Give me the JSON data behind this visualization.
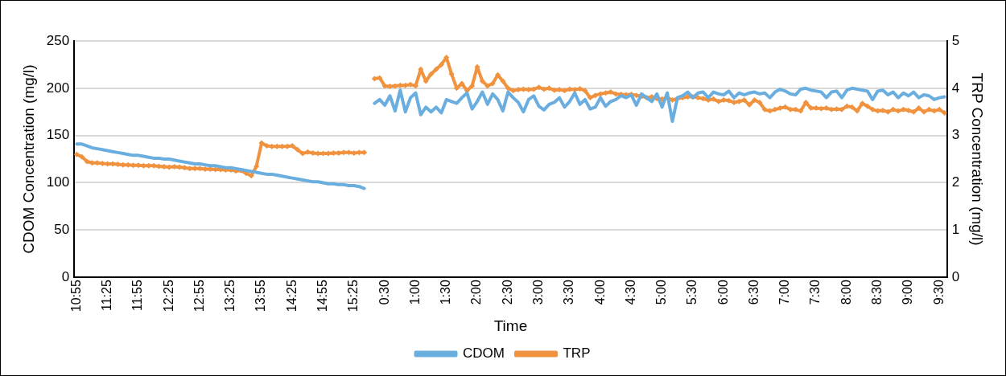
{
  "chart_data": {
    "type": "line",
    "xlabel": "Time",
    "ylabel": "CDOM Concentration (mg/l)",
    "y2label": "TRP Concentration (mg/l)",
    "categories": [
      "10:55",
      null,
      null,
      null,
      null,
      null,
      "11:25",
      null,
      null,
      null,
      null,
      null,
      "11:55",
      null,
      null,
      null,
      null,
      null,
      "12:25",
      null,
      null,
      null,
      null,
      null,
      "12:55",
      null,
      null,
      null,
      null,
      null,
      "13:25",
      null,
      null,
      null,
      null,
      null,
      "13:55",
      null,
      null,
      null,
      null,
      null,
      "14:25",
      null,
      null,
      null,
      null,
      null,
      "14:55",
      null,
      null,
      null,
      null,
      null,
      "15:25",
      null,
      null,
      null,
      null,
      null,
      "0:30",
      null,
      null,
      null,
      null,
      null,
      "1:00",
      null,
      null,
      null,
      null,
      null,
      "1:30",
      null,
      null,
      null,
      null,
      null,
      "2:00",
      null,
      null,
      null,
      null,
      null,
      "2:30",
      null,
      null,
      null,
      null,
      null,
      "3:00",
      null,
      null,
      null,
      null,
      null,
      "3:30",
      null,
      null,
      null,
      null,
      null,
      "4:00",
      null,
      null,
      null,
      null,
      null,
      "4:30",
      null,
      null,
      null,
      null,
      null,
      "5:00",
      null,
      null,
      null,
      null,
      null,
      "5:30",
      null,
      null,
      null,
      null,
      null,
      "6:00",
      null,
      null,
      null,
      null,
      null,
      "6:30",
      null,
      null,
      null,
      null,
      null,
      "7:00",
      null,
      null,
      null,
      null,
      null,
      "7:30",
      null,
      null,
      null,
      null,
      null,
      "8:00",
      null,
      null,
      null,
      null,
      null,
      "8:30",
      null,
      null,
      null,
      null,
      null,
      "9:00",
      null,
      null,
      null,
      null,
      null,
      "9:30",
      null
    ],
    "series": [
      {
        "name": "CDOM",
        "color": "#6aaee0",
        "marker": "none",
        "values": [
          141,
          141,
          139,
          137,
          136,
          135,
          134,
          133,
          132,
          131,
          130,
          129,
          129,
          128,
          127,
          126,
          126,
          125,
          125,
          124,
          123,
          122,
          121,
          120,
          120,
          119,
          118,
          118,
          117,
          116,
          116,
          115,
          114,
          113,
          112,
          111,
          110,
          109,
          109,
          108,
          107,
          106,
          105,
          104,
          103,
          102,
          101,
          101,
          100,
          99,
          99,
          98,
          98,
          97,
          97,
          96,
          94,
          null,
          184,
          188,
          182,
          192,
          176,
          198,
          175,
          190,
          195,
          172,
          180,
          175,
          180,
          174,
          188,
          186,
          184,
          190,
          195,
          178,
          186,
          196,
          183,
          194,
          188,
          176,
          196,
          190,
          185,
          175,
          188,
          192,
          181,
          177,
          183,
          185,
          190,
          180,
          186,
          195,
          183,
          188,
          178,
          180,
          190,
          181,
          186,
          188,
          192,
          190,
          193,
          182,
          194,
          190,
          186,
          194,
          180,
          195,
          165,
          190,
          192,
          196,
          190,
          195,
          196,
          190,
          196,
          194,
          193,
          197,
          190,
          195,
          193,
          195,
          196,
          194,
          195,
          190,
          196,
          199,
          197,
          194,
          193,
          199,
          200,
          198,
          197,
          196,
          190,
          196,
          197,
          190,
          198,
          200,
          199,
          198,
          197,
          188,
          197,
          198,
          193,
          196,
          190,
          195,
          192,
          196,
          190,
          193,
          192,
          188,
          190,
          191
        ]
      },
      {
        "name": "TRP",
        "color": "#f0923e",
        "marker": "diamond",
        "axis": "y2",
        "values": [
          2.6,
          2.55,
          2.45,
          2.42,
          2.42,
          2.41,
          2.4,
          2.4,
          2.39,
          2.38,
          2.38,
          2.37,
          2.37,
          2.36,
          2.36,
          2.36,
          2.35,
          2.34,
          2.33,
          2.34,
          2.33,
          2.32,
          2.3,
          2.3,
          2.3,
          2.29,
          2.29,
          2.28,
          2.28,
          2.27,
          2.27,
          2.25,
          2.26,
          2.2,
          2.15,
          2.35,
          2.84,
          2.78,
          2.77,
          2.77,
          2.77,
          2.77,
          2.78,
          2.7,
          2.62,
          2.65,
          2.63,
          2.62,
          2.62,
          2.62,
          2.63,
          2.63,
          2.64,
          2.64,
          2.63,
          2.64,
          2.64,
          null,
          4.2,
          4.22,
          4.05,
          4.04,
          4.05,
          4.06,
          4.06,
          4.08,
          4.05,
          4.4,
          4.15,
          4.3,
          4.4,
          4.5,
          4.65,
          4.3,
          4.0,
          4.1,
          3.95,
          4.05,
          4.45,
          4.15,
          4.05,
          4.1,
          4.28,
          4.15,
          4.0,
          3.95,
          3.97,
          3.98,
          3.97,
          3.98,
          4.02,
          3.98,
          4.0,
          3.96,
          3.97,
          3.95,
          3.98,
          3.97,
          3.99,
          3.95,
          3.8,
          3.85,
          3.88,
          3.9,
          3.92,
          3.88,
          3.87,
          3.86,
          3.87,
          3.85,
          3.83,
          3.8,
          3.82,
          3.78,
          3.77,
          3.8,
          3.75,
          3.78,
          3.8,
          3.82,
          3.82,
          3.8,
          3.78,
          3.75,
          3.77,
          3.72,
          3.75,
          3.74,
          3.7,
          3.72,
          3.75,
          3.65,
          3.75,
          3.7,
          3.55,
          3.52,
          3.55,
          3.58,
          3.6,
          3.55,
          3.55,
          3.52,
          3.7,
          3.58,
          3.58,
          3.57,
          3.58,
          3.55,
          3.56,
          3.55,
          3.62,
          3.6,
          3.52,
          3.68,
          3.62,
          3.55,
          3.52,
          3.53,
          3.5,
          3.55,
          3.52,
          3.55,
          3.53,
          3.5,
          3.58,
          3.5,
          3.55,
          3.52,
          3.55,
          3.48
        ]
      }
    ],
    "ylim": [
      0,
      250
    ],
    "yticks": [
      0,
      50,
      100,
      150,
      200,
      250
    ],
    "y2lim": [
      0,
      5
    ],
    "y2ticks": [
      0,
      1,
      2,
      3,
      4,
      5
    ],
    "grid": "y",
    "legend": "bottom",
    "line_style": "solid"
  }
}
